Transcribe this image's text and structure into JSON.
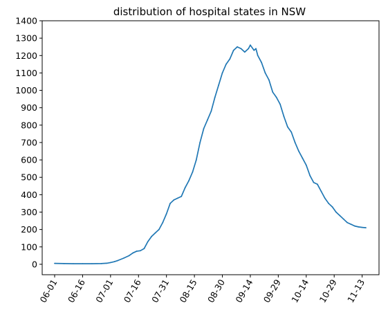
{
  "chart_data": {
    "type": "line",
    "title": "distribution of hospital states in NSW",
    "xlabel": "",
    "ylabel": "",
    "ylim": [
      -60,
      1400
    ],
    "yticks": [
      0,
      100,
      200,
      300,
      400,
      500,
      600,
      700,
      800,
      900,
      1000,
      1100,
      1200,
      1300,
      1400
    ],
    "xticks": [
      "06-01",
      "06-16",
      "07-01",
      "07-16",
      "07-31",
      "08-15",
      "08-30",
      "09-14",
      "09-29",
      "10-14",
      "10-29",
      "11-13"
    ],
    "grid": false,
    "legend": "none",
    "series": [
      {
        "name": "",
        "color": "#1f77b4",
        "x": [
          "06-01",
          "06-06",
          "06-11",
          "06-16",
          "06-21",
          "06-26",
          "06-29",
          "07-01",
          "07-03",
          "07-05",
          "07-08",
          "07-11",
          "07-13",
          "07-15",
          "07-17",
          "07-19",
          "07-21",
          "07-23",
          "07-25",
          "07-27",
          "07-29",
          "07-31",
          "08-02",
          "08-04",
          "08-06",
          "08-08",
          "08-10",
          "08-12",
          "08-14",
          "08-16",
          "08-18",
          "08-20",
          "08-22",
          "08-24",
          "08-26",
          "08-28",
          "08-30",
          "09-01",
          "09-03",
          "09-05",
          "09-07",
          "09-09",
          "09-11",
          "09-13",
          "09-14",
          "09-16",
          "09-17",
          "09-18",
          "09-20",
          "09-22",
          "09-24",
          "09-26",
          "09-28",
          "09-30",
          "10-02",
          "10-04",
          "10-06",
          "10-08",
          "10-10",
          "10-12",
          "10-14",
          "10-16",
          "10-18",
          "10-20",
          "10-22",
          "10-24",
          "10-26",
          "10-28",
          "10-30",
          "11-01",
          "11-03",
          "11-05",
          "11-07",
          "11-09",
          "11-11",
          "11-13",
          "11-15"
        ],
        "values": [
          5,
          4,
          3,
          3,
          3,
          4,
          6,
          10,
          15,
          22,
          35,
          50,
          65,
          75,
          78,
          90,
          130,
          160,
          180,
          200,
          240,
          290,
          350,
          370,
          380,
          390,
          440,
          480,
          530,
          600,
          700,
          780,
          830,
          880,
          960,
          1030,
          1100,
          1150,
          1180,
          1230,
          1250,
          1240,
          1220,
          1240,
          1260,
          1230,
          1240,
          1200,
          1160,
          1100,
          1060,
          990,
          960,
          920,
          850,
          790,
          760,
          700,
          650,
          610,
          570,
          510,
          470,
          460,
          420,
          380,
          350,
          330,
          300,
          280,
          260,
          240,
          230,
          220,
          215,
          212,
          210
        ]
      }
    ]
  }
}
